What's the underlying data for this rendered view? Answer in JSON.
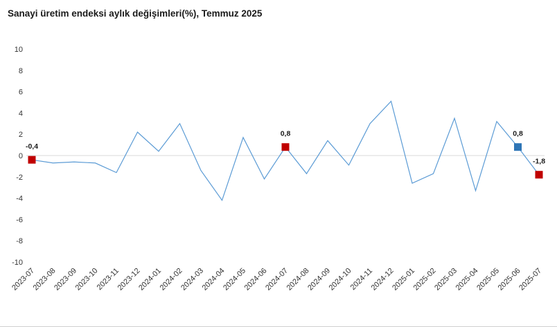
{
  "chart_data": {
    "type": "line",
    "title": "Sanayi üretim endeksi aylık değişimleri(%), Temmuz 2025",
    "xlabel": "",
    "ylabel": "",
    "ylim": [
      -10,
      10
    ],
    "yticks": [
      "10",
      "8",
      "6",
      "4",
      "2",
      "0",
      "-2",
      "-4",
      "-6",
      "-8",
      "-10"
    ],
    "categories": [
      "2023-07",
      "2023-08",
      "2023-09",
      "2023-10",
      "2023-11",
      "2023-12",
      "2024-01",
      "2024-02",
      "2024-03",
      "2024-04",
      "2024-05",
      "2024-06",
      "2024-07",
      "2024-08",
      "2024-09",
      "2024-10",
      "2024-11",
      "2024-12",
      "2025-01",
      "2025-02",
      "2025-03",
      "2025-04",
      "2025-05",
      "2025-06",
      "2025-07"
    ],
    "series": [
      {
        "values": [
          -0.4,
          -0.7,
          -0.6,
          -0.7,
          -1.6,
          2.2,
          0.4,
          3.0,
          -1.4,
          -4.2,
          1.7,
          -2.2,
          0.8,
          -1.7,
          1.4,
          -0.9,
          3.0,
          5.1,
          -2.6,
          -1.7,
          3.5,
          -3.3,
          3.2,
          0.8,
          -1.8
        ],
        "color": "#5b9bd5"
      }
    ],
    "highlighted_points": [
      {
        "category": "2023-07",
        "value": -0.4,
        "label": "-0,4",
        "color": "#c00000"
      },
      {
        "category": "2024-07",
        "value": 0.8,
        "label": "0,8",
        "color": "#c00000"
      },
      {
        "category": "2025-06",
        "value": 0.8,
        "label": "0,8",
        "color": "#2e75b6"
      },
      {
        "category": "2025-07",
        "value": -1.8,
        "label": "-1,8",
        "color": "#c00000"
      }
    ],
    "grid": false,
    "legend": "none"
  }
}
